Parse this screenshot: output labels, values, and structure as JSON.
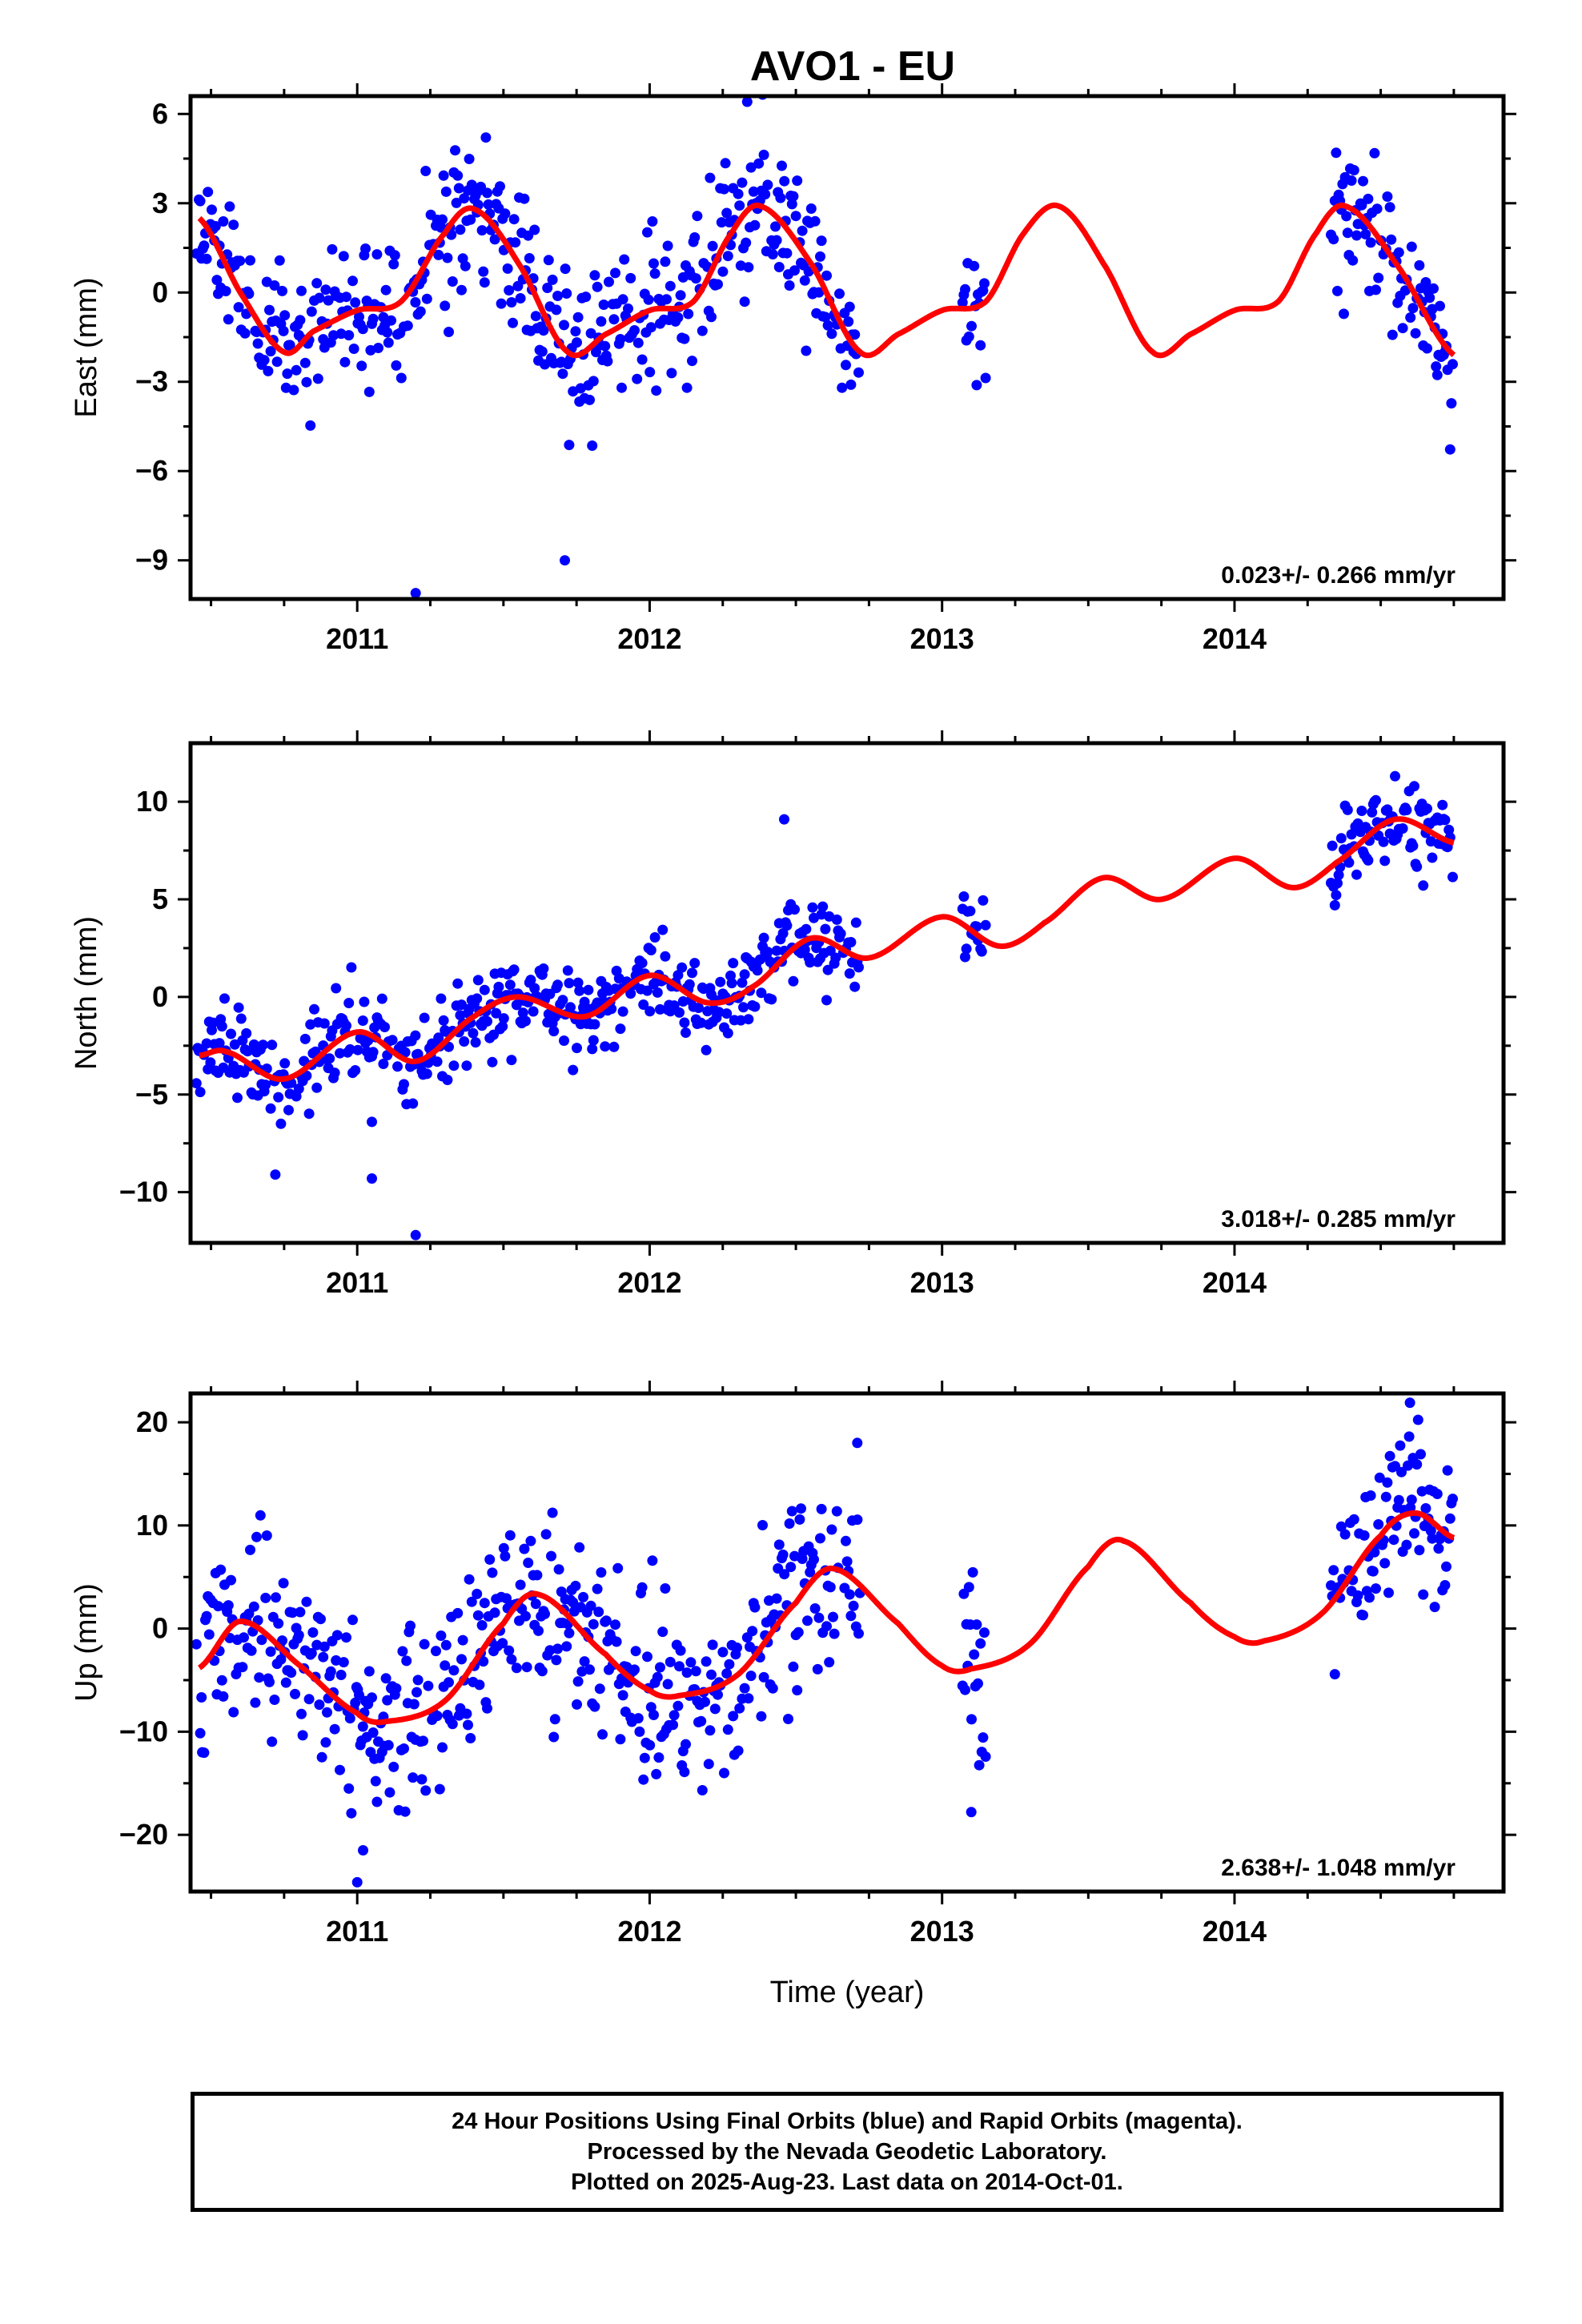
{
  "title": "AVO1 - EU",
  "xlabel": "Time (year)",
  "colors": {
    "points": "#0000ff",
    "model": "#ff0000",
    "axes": "#000000"
  },
  "caption": {
    "line1": "24 Hour Positions Using Final Orbits (blue) and Rapid Orbits (magenta).",
    "line2": "Processed by the Nevada Geodetic Laboratory.",
    "line3": "Plotted on 2025-Aug-23. Last data on 2014-Oct-01."
  },
  "chart_data": [
    {
      "type": "scatter",
      "ylabel": "East (mm)",
      "xlim": [
        2010.43,
        2014.92
      ],
      "ylim": [
        -10.3,
        6.6
      ],
      "xticks": [
        2011,
        2012,
        2013,
        2014
      ],
      "xtick_labels": [
        "2011",
        "2012",
        "2013",
        "2014"
      ],
      "yticks": [
        -9,
        -6,
        -3,
        0,
        3,
        6
      ],
      "ytick_labels": [
        "−9",
        "−6",
        "−3",
        "0",
        "3",
        "6"
      ],
      "rate_label": "0.023+/- 0.266 mm/yr",
      "model": {
        "name": "model fit",
        "x": [
          2010.46,
          2010.6,
          2010.75,
          2010.85,
          2011.0,
          2011.15,
          2011.3,
          2011.4,
          2011.55,
          2011.72,
          2011.85,
          2012.0,
          2012.15,
          2012.28,
          2012.38,
          2012.55,
          2012.72,
          2012.85,
          2013.0,
          2013.15,
          2013.28,
          2013.4,
          2013.55,
          2013.72,
          2013.85,
          2014.0,
          2014.15,
          2014.28,
          2014.38,
          2014.55,
          2014.75
        ],
        "y": [
          2.5,
          0.0,
          -2.0,
          -1.3,
          -0.6,
          -0.3,
          2.0,
          2.8,
          1.0,
          -2.0,
          -1.4,
          -0.6,
          -0.3,
          2.0,
          2.9,
          1.0,
          -2.0,
          -1.4,
          -0.6,
          -0.3,
          2.0,
          2.9,
          1.0,
          -2.0,
          -1.4,
          -0.6,
          -0.3,
          2.0,
          2.9,
          1.0,
          -2.1
        ]
      },
      "segments": [
        [
          2010.45,
          2012.72
        ],
        [
          2013.07,
          2013.15
        ],
        [
          2014.33,
          2014.75
        ]
      ],
      "outliers": [
        [
          2011.2,
          -10.1
        ],
        [
          2011.71,
          -9.0
        ]
      ],
      "scatter_sd": 1.25,
      "seed": 11
    },
    {
      "type": "scatter",
      "ylabel": "North (mm)",
      "xlim": [
        2010.43,
        2014.92
      ],
      "ylim": [
        -12.6,
        13.0
      ],
      "xticks": [
        2011,
        2012,
        2013,
        2014
      ],
      "xtick_labels": [
        "2011",
        "2012",
        "2013",
        "2014"
      ],
      "yticks": [
        -10,
        -5,
        0,
        5,
        10
      ],
      "ytick_labels": [
        "−10",
        "−5",
        "0",
        "5",
        "10"
      ],
      "rate_label": "3.018+/- 0.285 mm/yr",
      "model": {
        "name": "model fit",
        "x": [
          2010.46,
          2010.55,
          2010.75,
          2011.0,
          2011.2,
          2011.4,
          2011.55,
          2011.78,
          2012.0,
          2012.2,
          2012.35,
          2012.55,
          2012.75,
          2013.0,
          2013.2,
          2013.35,
          2013.55,
          2013.75,
          2014.0,
          2014.2,
          2014.35,
          2014.55,
          2014.75
        ],
        "y": [
          -3.0,
          -2.8,
          -4.2,
          -1.8,
          -3.3,
          -1.0,
          0.0,
          -1.0,
          1.1,
          -0.3,
          0.5,
          3.0,
          2.0,
          4.1,
          2.6,
          3.8,
          6.1,
          5.0,
          7.1,
          5.6,
          6.9,
          9.1,
          7.9
        ]
      },
      "segments": [
        [
          2010.45,
          2012.72
        ],
        [
          2013.07,
          2013.15
        ],
        [
          2014.33,
          2014.75
        ]
      ],
      "outliers": [
        [
          2011.2,
          -12.2
        ],
        [
          2011.05,
          -9.3
        ],
        [
          2010.72,
          -9.1
        ],
        [
          2012.46,
          9.1
        ],
        [
          2011.05,
          -6.4
        ]
      ],
      "scatter_sd": 1.1,
      "seed": 23
    },
    {
      "type": "scatter",
      "ylabel": "Up (mm)",
      "xlim": [
        2010.43,
        2014.92
      ],
      "ylim": [
        -25.5,
        22.8
      ],
      "xticks": [
        2011,
        2012,
        2013,
        2014
      ],
      "xtick_labels": [
        "2011",
        "2012",
        "2013",
        "2014"
      ],
      "yticks": [
        -20,
        -10,
        0,
        10,
        20
      ],
      "ytick_labels": [
        "−20",
        "−10",
        "0",
        "10",
        "20"
      ],
      "rate_label": "2.638+/- 1.048 mm/yr",
      "model": {
        "name": "model fit",
        "x": [
          2010.46,
          2010.6,
          2010.8,
          2011.0,
          2011.1,
          2011.3,
          2011.5,
          2011.62,
          2011.85,
          2012.0,
          2012.1,
          2012.3,
          2012.5,
          2012.63,
          2012.85,
          2013.0,
          2013.1,
          2013.3,
          2013.5,
          2013.62,
          2013.85,
          2014.0,
          2014.1,
          2014.3,
          2014.5,
          2014.62,
          2014.75
        ],
        "y": [
          -3.8,
          0.7,
          -3.5,
          -8.2,
          -9.0,
          -7.0,
          0.5,
          3.3,
          -2.5,
          -6.0,
          -6.5,
          -4.5,
          2.5,
          5.8,
          0.5,
          -3.6,
          -3.9,
          -1.5,
          6.0,
          8.5,
          2.5,
          -0.8,
          -1.2,
          1.5,
          9.0,
          11.2,
          8.8
        ]
      },
      "segments": [
        [
          2010.45,
          2012.72
        ],
        [
          2013.07,
          2013.15
        ],
        [
          2014.33,
          2014.75
        ]
      ],
      "outliers": [
        [
          2011.0,
          -24.6
        ],
        [
          2011.02,
          -21.5
        ],
        [
          2010.47,
          -12.0
        ],
        [
          2014.6,
          21.9
        ],
        [
          2012.71,
          18.0
        ],
        [
          2013.1,
          -17.8
        ]
      ],
      "scatter_sd": 4.2,
      "seed": 37
    }
  ]
}
